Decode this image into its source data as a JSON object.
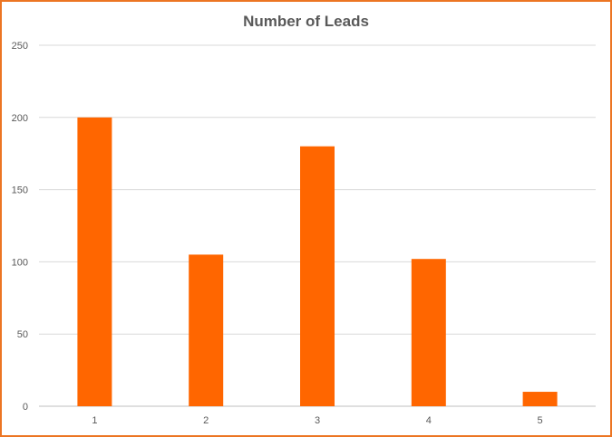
{
  "chart_data": {
    "type": "bar",
    "title": "Number of Leads",
    "xlabel": "",
    "ylabel": "",
    "categories": [
      "1",
      "2",
      "3",
      "4",
      "5"
    ],
    "values": [
      200,
      105,
      180,
      102,
      10
    ],
    "ylim": [
      0,
      250
    ],
    "yticks": [
      0,
      50,
      100,
      150,
      200,
      250
    ],
    "grid": true,
    "legend": "none",
    "bar_color": "#ff6600",
    "border_color": "#ec7523"
  }
}
